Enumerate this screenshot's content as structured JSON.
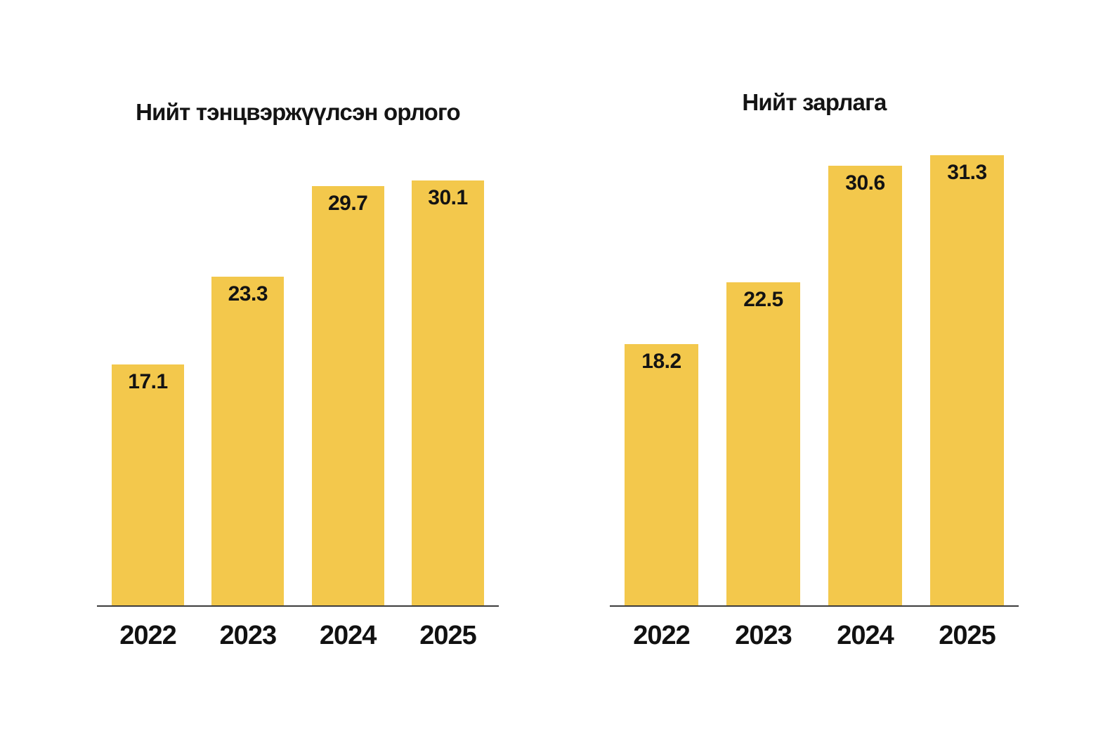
{
  "page": {
    "background": "#FFFFFF"
  },
  "chart_data": [
    {
      "type": "bar",
      "title": "Нийт тэнцвэржүүлсэн орлого",
      "categories": [
        "2022",
        "2023",
        "2024",
        "2025"
      ],
      "values": [
        17.1,
        23.3,
        29.7,
        30.1
      ],
      "value_labels": [
        "17.1",
        "23.3",
        "29.7",
        "30.1"
      ],
      "xlabel": "",
      "ylabel": "",
      "ylim": [
        0,
        32.8
      ],
      "grid": false,
      "legend": false,
      "value_label_position": "inside-top",
      "bar_color": "#F3C84C",
      "value_label_color": "#131313",
      "category_label_color": "#111111",
      "title_color": "#141414",
      "axis_color": "#3C3C3C"
    },
    {
      "type": "bar",
      "title": "Нийт зарлага",
      "categories": [
        "2022",
        "2023",
        "2024",
        "2025"
      ],
      "values": [
        18.2,
        22.5,
        30.6,
        31.3
      ],
      "value_labels": [
        "18.2",
        "22.5",
        "30.6",
        "31.3"
      ],
      "xlabel": "",
      "ylabel": "",
      "ylim": [
        0,
        32.2
      ],
      "grid": false,
      "legend": false,
      "value_label_position": "inside-top",
      "bar_color": "#F3C84C",
      "value_label_color": "#131313",
      "category_label_color": "#111111",
      "title_color": "#141414",
      "axis_color": "#3C3C3C"
    }
  ]
}
